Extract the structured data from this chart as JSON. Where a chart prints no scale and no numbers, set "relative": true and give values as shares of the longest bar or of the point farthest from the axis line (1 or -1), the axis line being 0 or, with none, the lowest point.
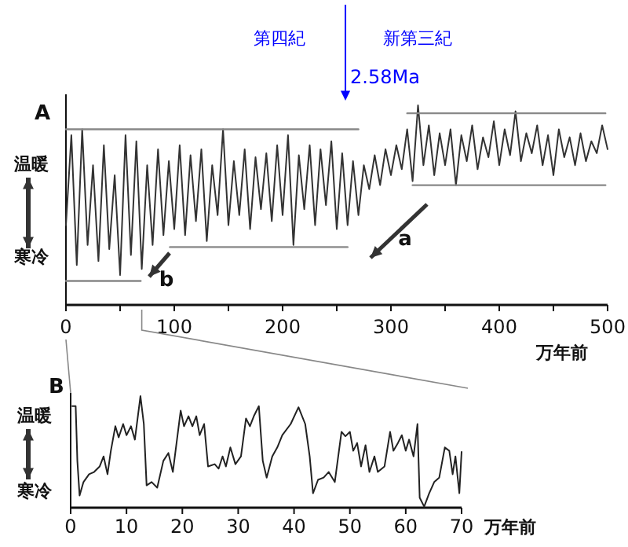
{
  "chart_data": [
    {
      "type": "line",
      "title": "A",
      "xlabel": "万年前",
      "relative": true,
      "xlim": [
        0,
        500
      ],
      "xticks": [
        0,
        {
          "value": 50,
          "label": null
        },
        100,
        {
          "value": 150,
          "label": null
        },
        200,
        {
          "value": 250,
          "label": null
        },
        300,
        {
          "value": 350,
          "label": null
        },
        400,
        {
          "value": 450,
          "label": null
        },
        500
      ],
      "series": [
        {
          "color": "#333333",
          "x": [
            0,
            5,
            10,
            15,
            20,
            25,
            30,
            35,
            40,
            45,
            50,
            55,
            60,
            65,
            70,
            75,
            80,
            85,
            90,
            95,
            100,
            105,
            110,
            115,
            120,
            125,
            130,
            135,
            140,
            145,
            150,
            155,
            160,
            165,
            170,
            175,
            180,
            185,
            190,
            195,
            200,
            205,
            210,
            215,
            220,
            225,
            230,
            235,
            240,
            245,
            250,
            255,
            260,
            265,
            270,
            275,
            280,
            285,
            290,
            295,
            300,
            305,
            310,
            315,
            320,
            325,
            330,
            335,
            340,
            345,
            350,
            355,
            360,
            365,
            370,
            375,
            380,
            385,
            390,
            395,
            400,
            405,
            410,
            415,
            420,
            425,
            430,
            435,
            440,
            445,
            450,
            455,
            460,
            465,
            470,
            475,
            480,
            485,
            490,
            495,
            500
          ],
          "values": [
            0.4,
            0.85,
            0.2,
            0.88,
            0.3,
            0.7,
            0.22,
            0.8,
            0.28,
            0.65,
            0.15,
            0.85,
            0.25,
            0.82,
            0.18,
            0.7,
            0.3,
            0.78,
            0.35,
            0.72,
            0.38,
            0.8,
            0.35,
            0.75,
            0.42,
            0.78,
            0.32,
            0.7,
            0.45,
            0.88,
            0.4,
            0.72,
            0.45,
            0.78,
            0.38,
            0.74,
            0.48,
            0.76,
            0.42,
            0.8,
            0.45,
            0.85,
            0.3,
            0.75,
            0.48,
            0.8,
            0.4,
            0.78,
            0.5,
            0.82,
            0.38,
            0.76,
            0.4,
            0.72,
            0.45,
            0.7,
            0.58,
            0.75,
            0.6,
            0.78,
            0.65,
            0.8,
            0.68,
            0.88,
            0.62,
            1.0,
            0.7,
            0.9,
            0.65,
            0.86,
            0.7,
            0.88,
            0.6,
            0.85,
            0.72,
            0.9,
            0.68,
            0.84,
            0.74,
            0.92,
            0.7,
            0.88,
            0.75,
            0.97,
            0.72,
            0.86,
            0.76,
            0.9,
            0.7,
            0.85,
            0.65,
            0.88,
            0.74,
            0.84,
            0.7,
            0.86,
            0.72,
            0.82,
            0.76,
            0.9,
            0.78
          ]
        },
        {
          "type": "line",
          "color": "#888888",
          "x": [
            0,
            270
          ],
          "values": [
            0.88,
            0.88
          ]
        },
        {
          "type": "line",
          "color": "#888888",
          "x": [
            0,
            69
          ],
          "values": [
            0.12,
            0.12
          ]
        },
        {
          "type": "line",
          "color": "#888888",
          "x": [
            96,
            260
          ],
          "values": [
            0.29,
            0.29
          ]
        },
        {
          "type": "line",
          "color": "#888888",
          "x": [
            315,
            498
          ],
          "values": [
            0.96,
            0.96
          ]
        },
        {
          "type": "line",
          "color": "#888888",
          "x": [
            320,
            498
          ],
          "values": [
            0.6,
            0.6
          ]
        }
      ],
      "ref_lines": [
        {
          "axis": "x",
          "value": 258,
          "label": "2.58Ma",
          "color": "#0000ff"
        }
      ],
      "annotations": [
        "温暖",
        "寒冷",
        "a",
        "b",
        "第四紀",
        "新第三紀"
      ]
    },
    {
      "type": "line",
      "title": "B",
      "xlabel": "万年前",
      "relative": true,
      "xlim": [
        0,
        70
      ],
      "xticks": [
        0,
        10,
        20,
        30,
        40,
        50,
        60,
        70
      ],
      "series": [
        {
          "color": "#222222",
          "x": [
            0.3,
            0.9,
            1.2,
            1.6,
            2.3,
            3.3,
            4.2,
            5.2,
            5.9,
            6.6,
            7.2,
            8.0,
            8.6,
            9.4,
            10.0,
            10.8,
            11.5,
            12.5,
            13.1,
            13.6,
            14.5,
            15.5,
            16.6,
            17.5,
            18.3,
            19.7,
            20.3,
            21.1,
            21.8,
            22.5,
            23.1,
            23.9,
            24.6,
            25.8,
            26.5,
            27.2,
            27.8,
            28.6,
            29.5,
            30.5,
            31.4,
            32.1,
            32.8,
            33.7,
            34.4,
            35.1,
            36.1,
            37.0,
            37.9,
            39.4,
            40.8,
            42.0,
            42.8,
            43.4,
            44.3,
            45.3,
            46.2,
            47.3,
            48.5,
            49.2,
            50.0,
            50.6,
            51.3,
            52.0,
            52.8,
            53.5,
            54.4,
            55.0,
            56.2,
            57.2,
            57.8,
            58.6,
            59.3,
            60.0,
            60.6,
            61.4,
            62.1,
            62.5,
            63.3,
            64.2,
            65.1,
            66.0,
            67.0,
            67.8,
            68.4,
            68.9,
            69.6,
            70.0
          ],
          "values": [
            0.91,
            0.91,
            0.42,
            0.11,
            0.23,
            0.3,
            0.32,
            0.37,
            0.46,
            0.3,
            0.51,
            0.73,
            0.63,
            0.75,
            0.65,
            0.73,
            0.61,
            1.0,
            0.75,
            0.2,
            0.23,
            0.18,
            0.42,
            0.49,
            0.32,
            0.87,
            0.73,
            0.82,
            0.73,
            0.82,
            0.65,
            0.75,
            0.37,
            0.39,
            0.35,
            0.46,
            0.37,
            0.54,
            0.39,
            0.46,
            0.8,
            0.73,
            0.82,
            0.91,
            0.42,
            0.27,
            0.46,
            0.54,
            0.65,
            0.75,
            0.9,
            0.75,
            0.46,
            0.13,
            0.25,
            0.27,
            0.32,
            0.23,
            0.68,
            0.64,
            0.68,
            0.51,
            0.58,
            0.37,
            0.56,
            0.32,
            0.46,
            0.32,
            0.37,
            0.68,
            0.51,
            0.58,
            0.65,
            0.51,
            0.61,
            0.46,
            0.75,
            0.09,
            0.01,
            0.13,
            0.23,
            0.27,
            0.54,
            0.51,
            0.3,
            0.46,
            0.13,
            0.5
          ]
        }
      ],
      "annotations": [
        "温暖",
        "寒冷"
      ]
    }
  ]
}
